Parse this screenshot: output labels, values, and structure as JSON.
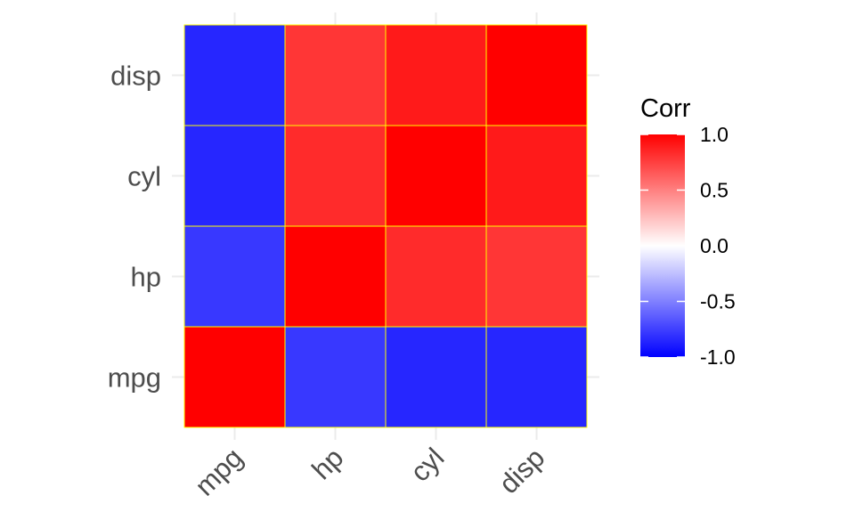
{
  "chart_data": {
    "type": "heatmap",
    "x_categories": [
      "mpg",
      "hp",
      "cyl",
      "disp"
    ],
    "y_categories": [
      "mpg",
      "hp",
      "cyl",
      "disp"
    ],
    "values": [
      [
        1.0,
        -0.78,
        -0.85,
        -0.85
      ],
      [
        -0.78,
        1.0,
        0.83,
        0.79
      ],
      [
        -0.85,
        0.83,
        1.0,
        0.9
      ],
      [
        -0.85,
        0.79,
        0.9,
        1.0
      ]
    ],
    "legend": {
      "title": "Corr",
      "ticks": [
        1.0,
        0.5,
        0.0,
        -0.5,
        -1.0
      ],
      "tick_labels": [
        "1.0",
        "0.5",
        "0.0",
        "-0.5",
        "-1.0"
      ],
      "placement": "right"
    },
    "value_range": [
      -1,
      1
    ],
    "colors": {
      "low": "#0000ff",
      "mid": "#ffffff",
      "high": "#ff0000",
      "tile_border": "#ffff00",
      "grid": "#ebebeb"
    },
    "grid": true,
    "x_tick_rotation_deg": 45
  }
}
